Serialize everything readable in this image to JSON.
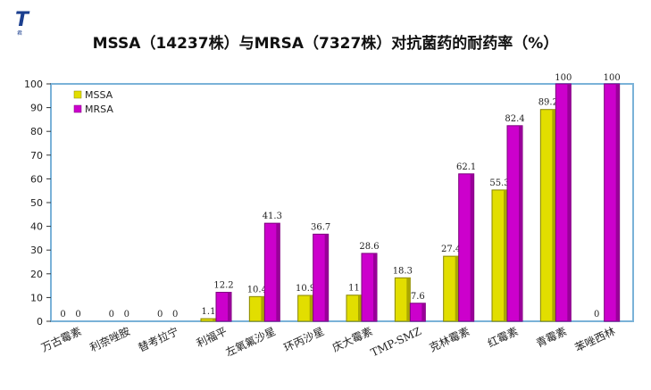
{
  "logo": {
    "mark": "T",
    "caption": "君"
  },
  "chart_data": {
    "type": "bar",
    "title": "MSSA（14237株）与MRSA（7327株）对抗菌药的耐药率（%）",
    "categories": [
      "万古霉素",
      "利奈唑胺",
      "替考拉宁",
      "利福平",
      "左氧氟沙星",
      "环丙沙星",
      "庆大霉素",
      "TMP-SMZ",
      "克林霉素",
      "红霉素",
      "青霉素",
      "苯唑西林"
    ],
    "series": [
      {
        "name": "MSSA",
        "color": "#e2de00",
        "values": [
          0,
          0,
          0,
          1.1,
          10.4,
          10.9,
          11,
          18.3,
          27.4,
          55.3,
          89.2,
          0
        ]
      },
      {
        "name": "MRSA",
        "color": "#cc00cc",
        "values": [
          0,
          0,
          0,
          12.2,
          41.3,
          36.7,
          28.6,
          7.6,
          62.1,
          82.4,
          100,
          100
        ]
      }
    ],
    "value_labels": [
      [
        "0",
        "0"
      ],
      [
        "0",
        "0"
      ],
      [
        "0",
        "0"
      ],
      [
        "1.1",
        "12.2"
      ],
      [
        "10.4",
        "41.3"
      ],
      [
        "10.9",
        "36.7"
      ],
      [
        "11",
        "28.6"
      ],
      [
        "18.3",
        "7.6"
      ],
      [
        "27.4",
        "62.1"
      ],
      [
        "55.3",
        "82.4"
      ],
      [
        "89.2",
        "100"
      ],
      [
        "0",
        "100"
      ]
    ],
    "ylim": [
      0,
      100
    ],
    "yticks": [
      0,
      10,
      20,
      30,
      40,
      50,
      60,
      70,
      80,
      90,
      100
    ],
    "xlabel": "",
    "ylabel": "",
    "legend": "top-left",
    "grid": false,
    "plot_border_color": "#7ab2d8"
  }
}
